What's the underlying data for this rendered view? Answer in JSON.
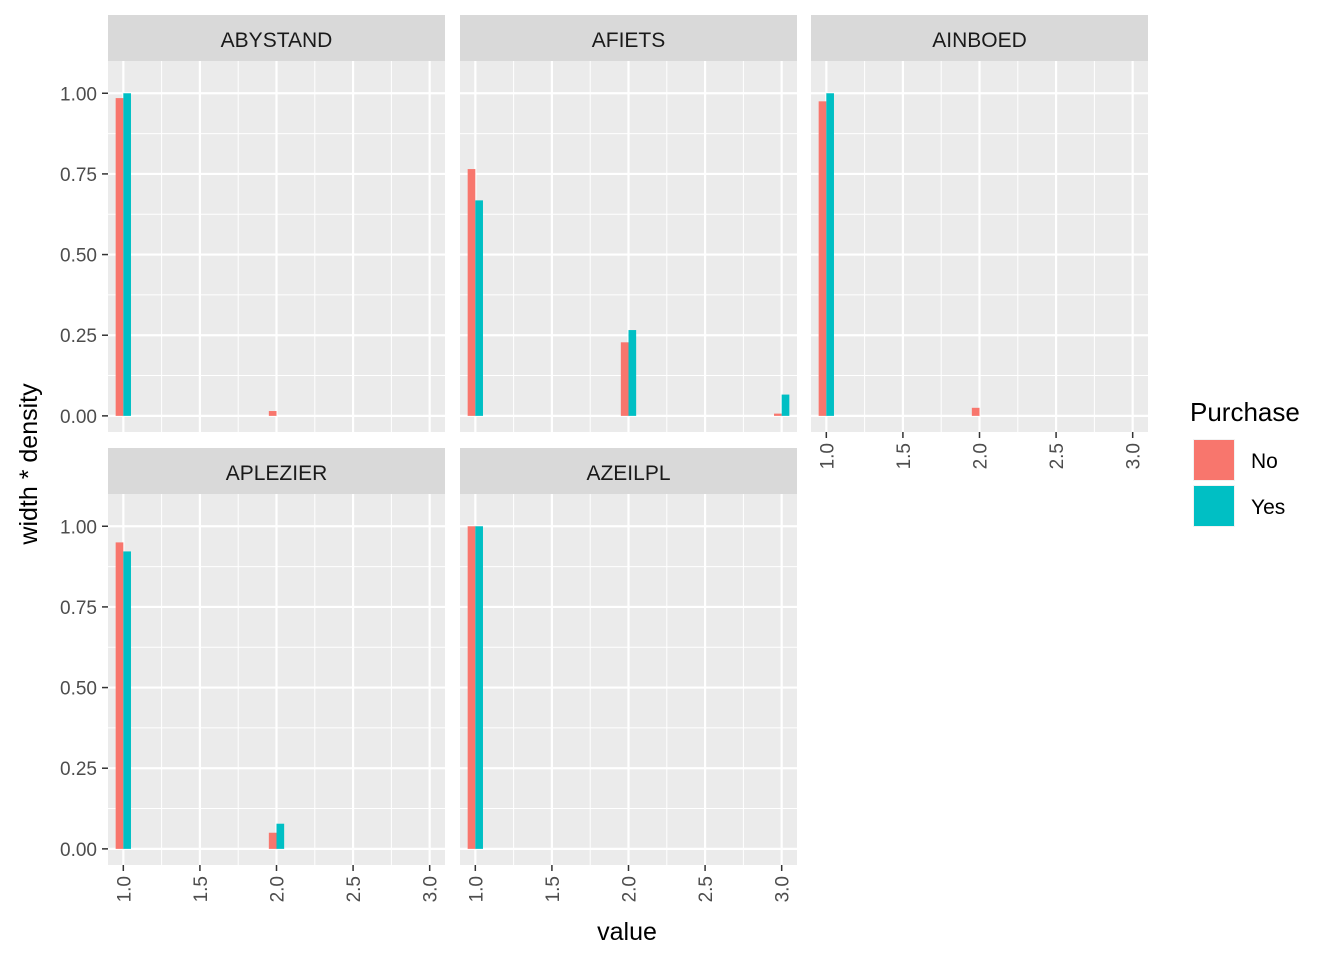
{
  "chart_data": {
    "type": "bar",
    "xlabel": "value",
    "ylabel": "width * density",
    "xlim": [
      0.9,
      3.1
    ],
    "ylim": [
      -0.05,
      1.1
    ],
    "x_ticks": [
      "1.0",
      "1.5",
      "2.0",
      "2.5",
      "3.0"
    ],
    "x_tick_values": [
      1.0,
      1.5,
      2.0,
      2.5,
      3.0
    ],
    "y_ticks": [
      "0.00",
      "0.25",
      "0.50",
      "0.75",
      "1.00"
    ],
    "y_tick_values": [
      0,
      0.25,
      0.5,
      0.75,
      1.0
    ],
    "grid": true,
    "legend": {
      "title": "Purchase",
      "placement": "right",
      "entries": [
        {
          "name": "No",
          "color": "#F8766D"
        },
        {
          "name": "Yes",
          "color": "#00BFC4"
        }
      ]
    },
    "panels": [
      {
        "name": "ABYSTAND",
        "series": [
          {
            "name": "No",
            "x": [
              1,
              2,
              3
            ],
            "values": [
              0.985,
              0.015,
              0
            ]
          },
          {
            "name": "Yes",
            "x": [
              1,
              2,
              3
            ],
            "values": [
              1.0,
              0,
              0
            ]
          }
        ]
      },
      {
        "name": "AFIETS",
        "series": [
          {
            "name": "No",
            "x": [
              1,
              2,
              3
            ],
            "values": [
              0.765,
              0.228,
              0.007
            ]
          },
          {
            "name": "Yes",
            "x": [
              1,
              2,
              3
            ],
            "values": [
              0.668,
              0.266,
              0.066
            ]
          }
        ]
      },
      {
        "name": "AINBOED",
        "series": [
          {
            "name": "No",
            "x": [
              1,
              2,
              3
            ],
            "values": [
              0.975,
              0.025,
              0
            ]
          },
          {
            "name": "Yes",
            "x": [
              1,
              2,
              3
            ],
            "values": [
              1.0,
              0,
              0
            ]
          }
        ]
      },
      {
        "name": "APLEZIER",
        "series": [
          {
            "name": "No",
            "x": [
              1,
              2,
              3
            ],
            "values": [
              0.95,
              0.05,
              0
            ]
          },
          {
            "name": "Yes",
            "x": [
              1,
              2,
              3
            ],
            "values": [
              0.922,
              0.078,
              0
            ]
          }
        ]
      },
      {
        "name": "AZEILPL",
        "series": [
          {
            "name": "No",
            "x": [
              1,
              2,
              3
            ],
            "values": [
              1.0,
              0,
              0
            ]
          },
          {
            "name": "Yes",
            "x": [
              1,
              2,
              3
            ],
            "values": [
              1.0,
              0,
              0
            ]
          }
        ]
      }
    ]
  }
}
